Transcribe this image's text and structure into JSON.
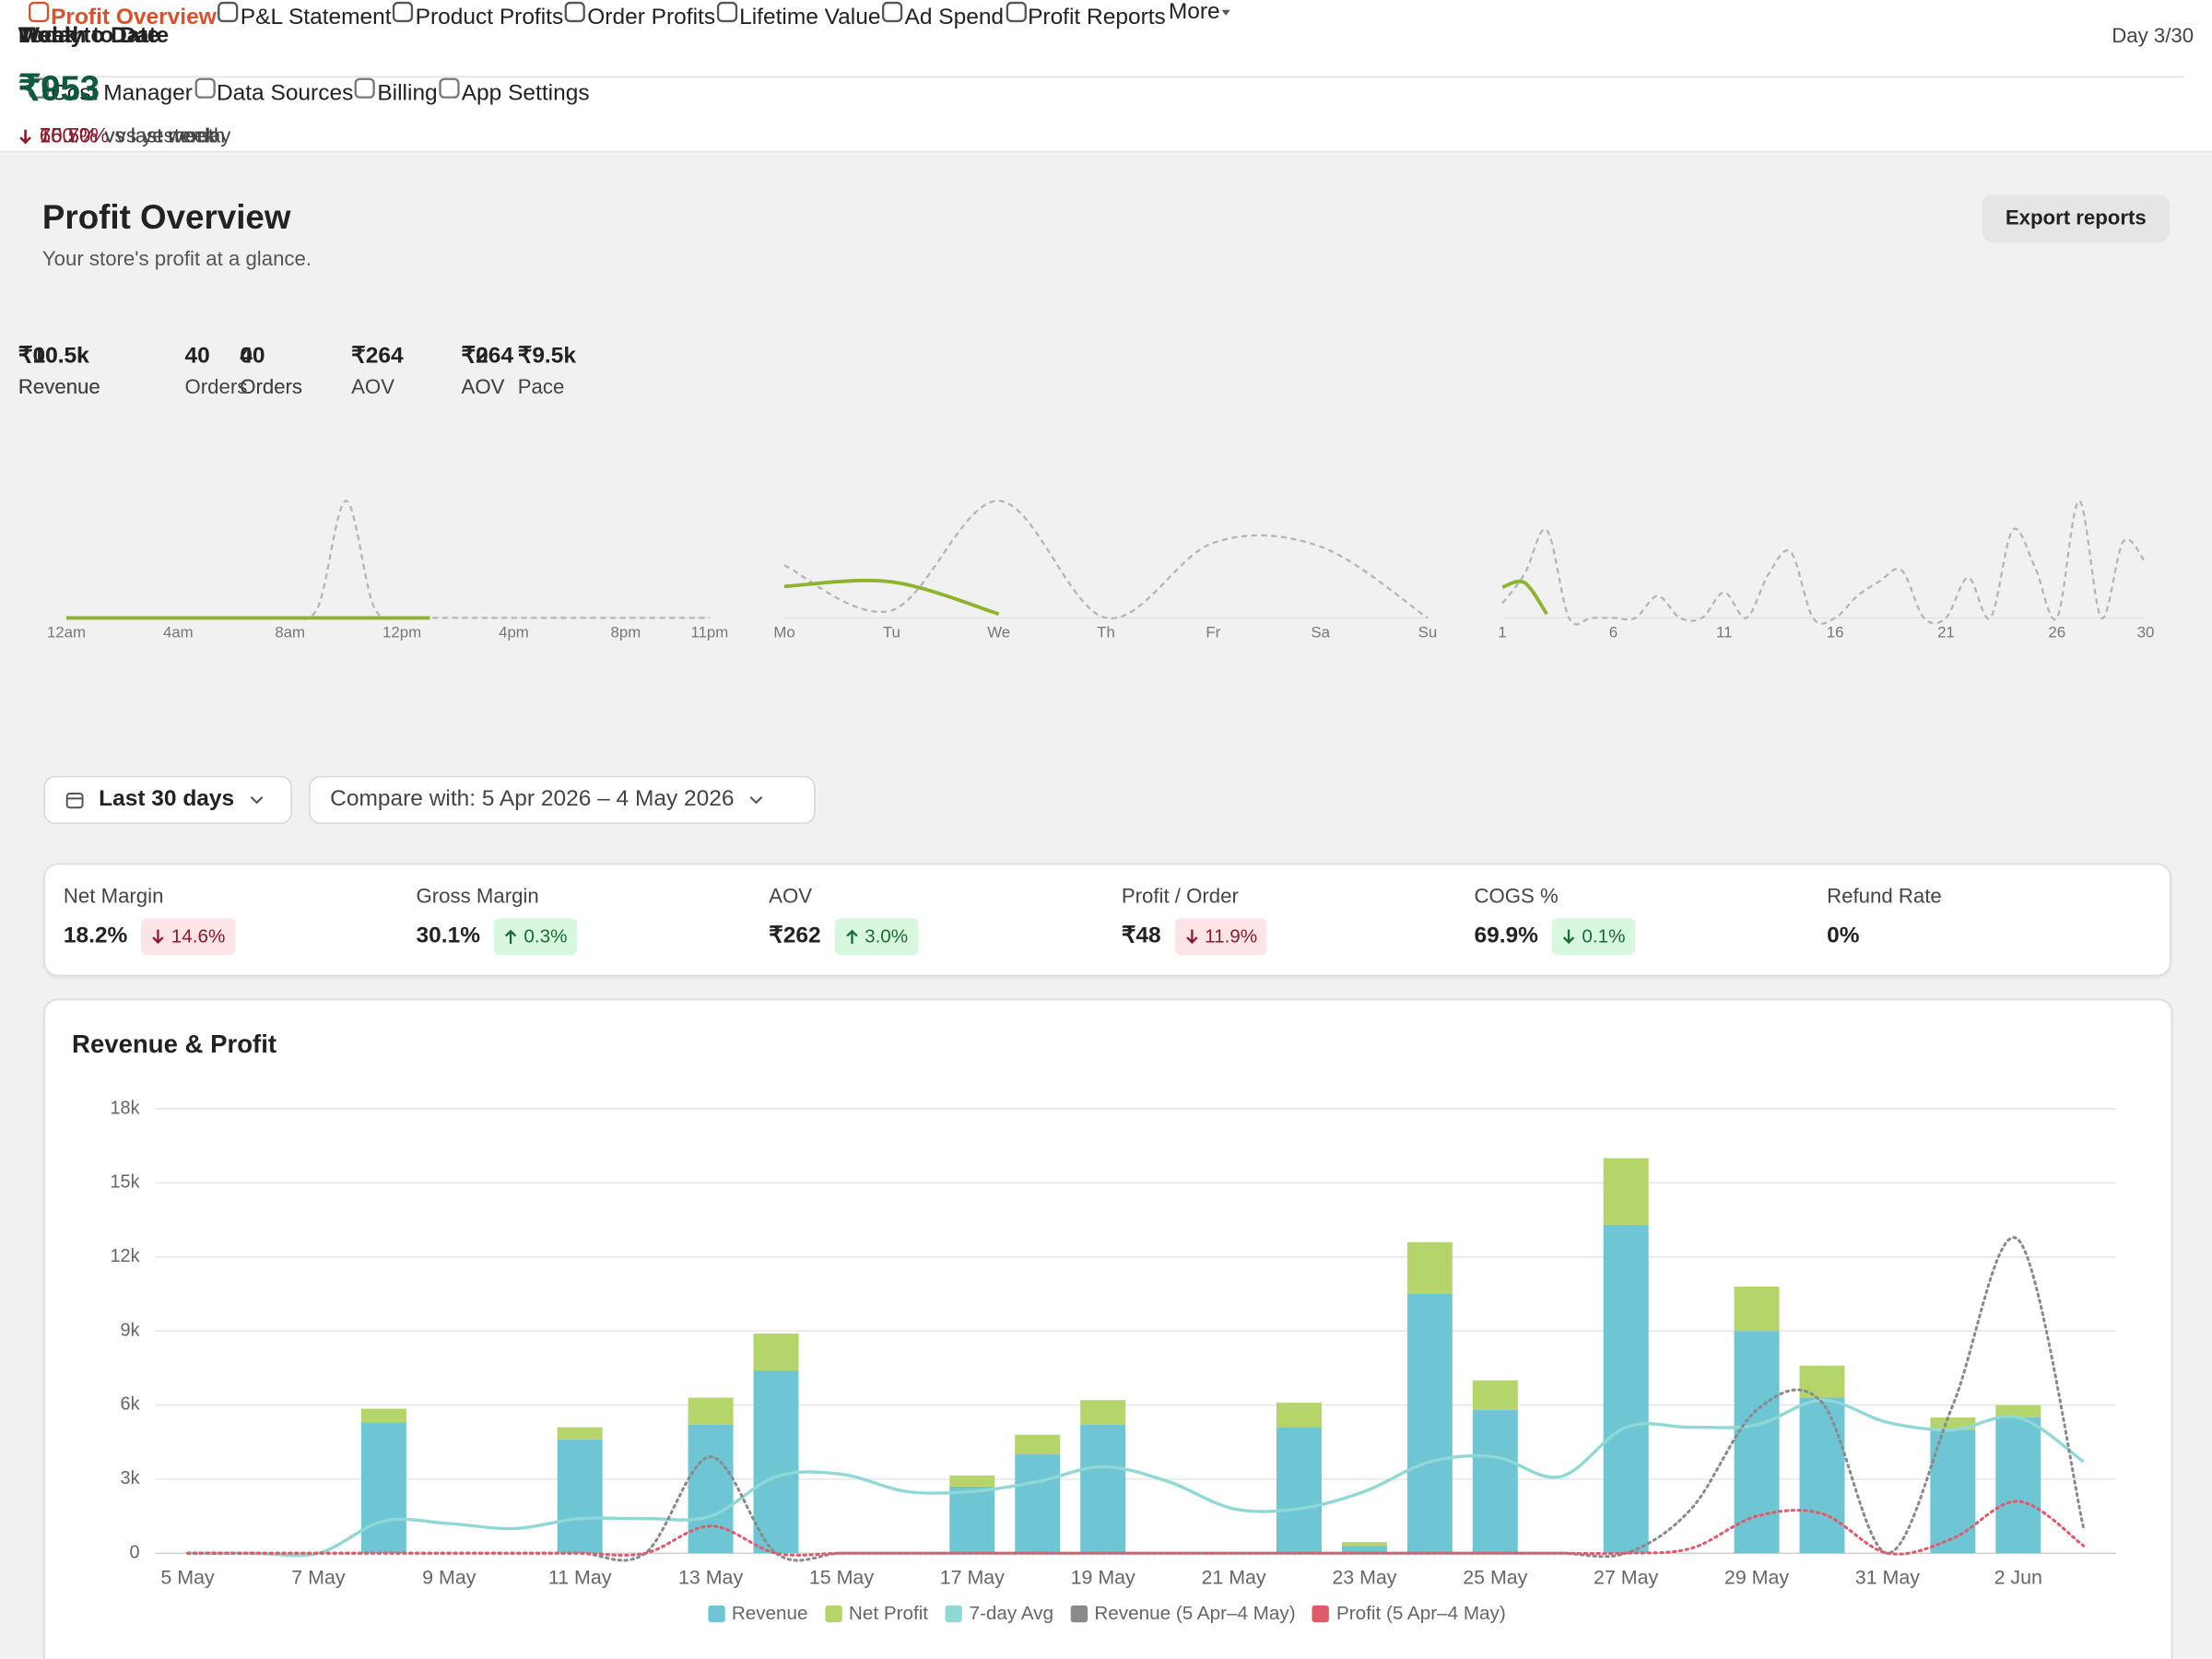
{
  "nav": {
    "tabs": [
      "Profit Overview",
      "P&L Statement",
      "Product Profits",
      "Order Profits",
      "Lifetime Value",
      "Ad Spend",
      "Profit Reports",
      "More"
    ],
    "active": 0,
    "active_color": "#d9512c",
    "subtabs": [
      "Cost Manager",
      "Data Sources",
      "Billing",
      "App Settings"
    ]
  },
  "header": {
    "title": "Profit Overview",
    "subtitle": "Your store's profit at a glance.",
    "button": "Export reports"
  },
  "cards": [
    {
      "title": "Today",
      "value": "₹0",
      "change": "100.0%",
      "change_text": "vs yesterday",
      "direction": "down",
      "chart": {
        "type": "line",
        "categories": [
          "12am",
          null,
          null,
          null,
          "4am",
          null,
          null,
          null,
          "8am",
          null,
          null,
          null,
          "12pm",
          null,
          null,
          null,
          "4pm",
          null,
          null,
          null,
          "8pm",
          null,
          null,
          "11pm"
        ],
        "series": [
          {
            "color": "#b5b5b5",
            "dashed": true,
            "values": [
              0,
              0,
              0,
              0,
              0,
              0,
              0,
              0,
              0,
              150,
              1600,
              150,
              0,
              0,
              0,
              0,
              0,
              0,
              0,
              0,
              0,
              0,
              0,
              0
            ]
          },
          {
            "color": "#8db42a",
            "dashed": false,
            "values": [
              0,
              0,
              0,
              0,
              0,
              0,
              0,
              0,
              0,
              0,
              0,
              0,
              0,
              0,
              null,
              null,
              null,
              null,
              null,
              null,
              null,
              null,
              null,
              null
            ]
          }
        ]
      },
      "stats": [
        {
          "value": "₹0",
          "label": "Revenue"
        },
        {
          "value": "0",
          "label": "Orders"
        },
        {
          "value": "₹0",
          "label": "AOV"
        }
      ]
    },
    {
      "title": "Week to Date",
      "value": "₹953",
      "change": "75.7%",
      "change_text": "vs last week",
      "direction": "down",
      "chart": {
        "type": "line",
        "categories": [
          "Mo",
          "Tu",
          "We",
          "Th",
          "Fr",
          "Sa",
          "Su"
        ],
        "series": [
          {
            "color": "#b5b5b5",
            "dashed": true,
            "values": [
              700,
              100,
              1560,
              0,
              1000,
              950,
              0
            ]
          },
          {
            "color": "#8db42a",
            "dashed": false,
            "values": [
              420,
              480,
              53,
              null,
              null,
              null,
              null
            ]
          }
        ]
      },
      "stats": [
        {
          "value": "₹10.5k",
          "label": "Revenue"
        },
        {
          "value": "40",
          "label": "Orders"
        },
        {
          "value": "₹264",
          "label": "AOV"
        }
      ]
    },
    {
      "title": "Month to Date",
      "badge": "Day 3/30",
      "value": "₹953",
      "change": "66.5%",
      "change_text": "vs last month",
      "direction": "down",
      "chart": {
        "type": "line",
        "categories": [
          "1",
          null,
          null,
          null,
          null,
          "6",
          null,
          null,
          null,
          null,
          "11",
          null,
          null,
          null,
          null,
          "16",
          null,
          null,
          null,
          null,
          "21",
          null,
          null,
          null,
          null,
          "26",
          null,
          null,
          null,
          "30"
        ],
        "series": [
          {
            "color": "#b5b5b5",
            "dashed": true,
            "values": [
              200,
              600,
              1200,
              0,
              0,
              0,
              0,
              300,
              0,
              0,
              350,
              0,
              600,
              900,
              0,
              0,
              300,
              500,
              650,
              0,
              0,
              550,
              0,
              1200,
              700,
              0,
              1600,
              0,
              1050,
              750
            ]
          },
          {
            "color": "#8db42a",
            "dashed": false,
            "values": [
              420,
              480,
              53,
              null,
              null,
              null,
              null,
              null,
              null,
              null,
              null,
              null,
              null,
              null,
              null,
              null,
              null,
              null,
              null,
              null,
              null,
              null,
              null,
              null,
              null,
              null,
              null,
              null,
              null,
              null
            ]
          }
        ]
      },
      "stats": [
        {
          "value": "₹10.5k",
          "label": "Revenue"
        },
        {
          "value": "40",
          "label": "Orders"
        },
        {
          "value": "₹264",
          "label": "AOV"
        },
        {
          "value": "₹9.5k",
          "label": "Pace"
        }
      ]
    }
  ],
  "filters": {
    "range": "Last 30 days",
    "compare": "Compare with: 5 Apr 2026 – 4 May 2026"
  },
  "metrics": [
    {
      "label": "Net Margin",
      "value": "18.2%",
      "change": "14.6%",
      "direction": "down",
      "tone": "bad"
    },
    {
      "label": "Gross Margin",
      "value": "30.1%",
      "change": "0.3%",
      "direction": "up",
      "tone": "good"
    },
    {
      "label": "AOV",
      "value": "₹262",
      "change": "3.0%",
      "direction": "up",
      "tone": "good"
    },
    {
      "label": "Profit / Order",
      "value": "₹48",
      "change": "11.9%",
      "direction": "down",
      "tone": "bad"
    },
    {
      "label": "COGS %",
      "value": "69.9%",
      "change": "0.1%",
      "direction": "down",
      "tone": "good"
    },
    {
      "label": "Refund Rate",
      "value": "0%"
    }
  ],
  "chart_data": {
    "type": "bar",
    "stacked": true,
    "title": "Revenue & Profit",
    "categories": [
      "5 May",
      null,
      "7 May",
      null,
      "9 May",
      null,
      "11 May",
      null,
      "13 May",
      null,
      "15 May",
      null,
      "17 May",
      null,
      "19 May",
      null,
      "21 May",
      null,
      "23 May",
      null,
      "25 May",
      null,
      "27 May",
      null,
      "29 May",
      null,
      "31 May",
      null,
      "2 Jun",
      null
    ],
    "series": [
      {
        "name": "Revenue",
        "kind": "bar",
        "color": "#6ec6d4",
        "values": [
          0,
          0,
          0,
          5300,
          0,
          0,
          4600,
          0,
          5200,
          7400,
          0,
          0,
          2700,
          4000,
          5200,
          0,
          0,
          5100,
          300,
          10500,
          5800,
          0,
          13300,
          0,
          9000,
          6300,
          0,
          5000,
          5500,
          0
        ]
      },
      {
        "name": "Net Profit",
        "kind": "bar",
        "color": "#b5d56a",
        "values": [
          0,
          0,
          0,
          550,
          0,
          0,
          500,
          0,
          1100,
          1500,
          0,
          0,
          450,
          800,
          1000,
          0,
          0,
          1000,
          150,
          2100,
          1200,
          0,
          2700,
          0,
          1800,
          1300,
          0,
          500,
          500,
          0
        ]
      },
      {
        "name": "7-day Avg",
        "kind": "line",
        "color": "#8fd8d6",
        "values": [
          0,
          0,
          0,
          1300,
          1200,
          1000,
          1400,
          1400,
          1500,
          3100,
          3200,
          2500,
          2500,
          2900,
          3500,
          2900,
          1800,
          1800,
          2500,
          3700,
          3900,
          3100,
          5100,
          5100,
          5200,
          6200,
          5300,
          5000,
          5500,
          3700
        ]
      },
      {
        "name": "Revenue (5 Apr–4 May)",
        "kind": "line",
        "dotted": true,
        "color": "#8a8a8a",
        "values": [
          0,
          0,
          0,
          0,
          0,
          0,
          0,
          0,
          3900,
          0,
          0,
          0,
          0,
          0,
          0,
          0,
          0,
          0,
          0,
          0,
          0,
          0,
          0,
          1800,
          5800,
          6100,
          0,
          6000,
          12700,
          1000
        ]
      },
      {
        "name": "Profit (5 Apr–4 May)",
        "kind": "line",
        "dotted": true,
        "color": "#e05a6a",
        "values": [
          0,
          0,
          0,
          0,
          0,
          0,
          0,
          0,
          1100,
          0,
          0,
          0,
          0,
          0,
          0,
          0,
          0,
          0,
          0,
          0,
          0,
          0,
          0,
          200,
          1500,
          1600,
          0,
          600,
          2100,
          300
        ]
      }
    ],
    "ylim": [
      0,
      18000
    ],
    "yticks": [
      0,
      {
        "value": 3000,
        "label": "3k"
      },
      {
        "value": 6000,
        "label": "6k"
      },
      {
        "value": 9000,
        "label": "9k"
      },
      {
        "value": 12000,
        "label": "12k"
      },
      {
        "value": 15000,
        "label": "15k"
      },
      {
        "value": 18000,
        "label": "18k"
      }
    ],
    "grid": true,
    "legend": "bottom"
  }
}
